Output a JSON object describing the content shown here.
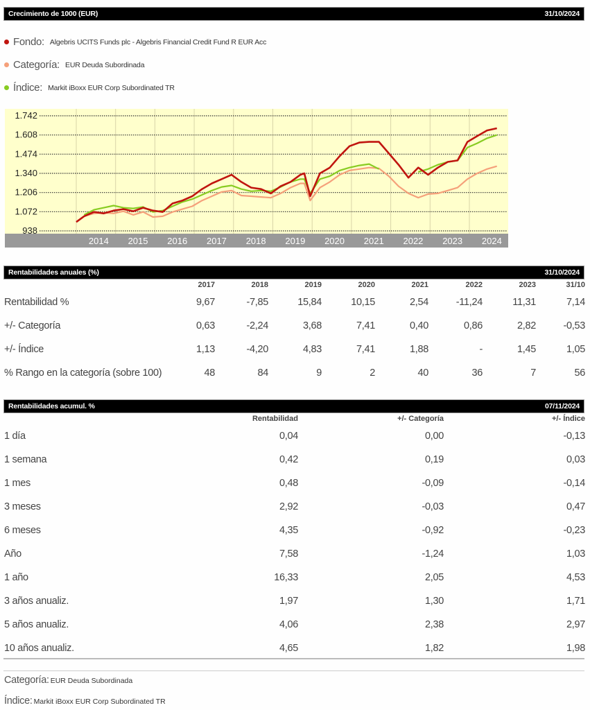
{
  "growth_section": {
    "title": "Crecimiento de 1000 (EUR)",
    "date": "31/10/2024",
    "legend": [
      {
        "label": "Fondo:",
        "value": "Algebris UCITS Funds plc - Algebris Financial Credit Fund R EUR Acc",
        "color": "#c0150f"
      },
      {
        "label": "Categoría:",
        "value": "EUR Deuda Subordinada",
        "color": "#f5a07a"
      },
      {
        "label": "Índice:",
        "value": "Markit iBoxx EUR Corp Subordinated TR",
        "color": "#88cc22"
      }
    ]
  },
  "chart_data": {
    "type": "line",
    "title": "Crecimiento de 1000 (EUR)",
    "xlabel": "",
    "ylabel": "",
    "y_ticks": [
      "1.742",
      "1.608",
      "1.474",
      "1.340",
      "1.206",
      "1.072",
      "938"
    ],
    "y_tick_values": [
      1742,
      1608,
      1474,
      1340,
      1206,
      1072,
      938
    ],
    "x_ticks": [
      "2014",
      "2015",
      "2016",
      "2017",
      "2018",
      "2019",
      "2020",
      "2021",
      "2022",
      "2023",
      "2024"
    ],
    "ylim": [
      930,
      1760
    ],
    "grid": true,
    "background": "#ffffcc",
    "x": [
      2013.8,
      2014.0,
      2014.25,
      2014.5,
      2014.75,
      2015.0,
      2015.25,
      2015.5,
      2015.75,
      2016.0,
      2016.25,
      2016.5,
      2016.75,
      2017.0,
      2017.25,
      2017.5,
      2017.75,
      2018.0,
      2018.25,
      2018.5,
      2018.75,
      2019.0,
      2019.25,
      2019.5,
      2019.6,
      2019.75,
      2020.0,
      2020.25,
      2020.5,
      2020.75,
      2021.0,
      2021.25,
      2021.5,
      2021.75,
      2022.0,
      2022.25,
      2022.5,
      2022.75,
      2023.0,
      2023.25,
      2023.5,
      2023.75,
      2024.0,
      2024.25,
      2024.5
    ],
    "series": [
      {
        "name": "Fondo",
        "color": "#c0150f",
        "values": [
          1000,
          1040,
          1070,
          1060,
          1080,
          1090,
          1075,
          1100,
          1080,
          1070,
          1130,
          1150,
          1180,
          1230,
          1270,
          1300,
          1330,
          1280,
          1240,
          1230,
          1200,
          1250,
          1280,
          1330,
          1340,
          1180,
          1340,
          1380,
          1460,
          1530,
          1555,
          1560,
          1560,
          1480,
          1400,
          1310,
          1380,
          1330,
          1380,
          1420,
          1430,
          1560,
          1600,
          1640,
          1655
        ]
      },
      {
        "name": "Categoría",
        "color": "#f5a07a",
        "values": [
          1000,
          1040,
          1060,
          1065,
          1060,
          1075,
          1050,
          1070,
          1035,
          1040,
          1070,
          1090,
          1110,
          1150,
          1180,
          1210,
          1220,
          1185,
          1180,
          1175,
          1170,
          1200,
          1240,
          1270,
          1270,
          1150,
          1240,
          1280,
          1330,
          1360,
          1370,
          1380,
          1375,
          1320,
          1250,
          1200,
          1170,
          1195,
          1200,
          1220,
          1240,
          1300,
          1340,
          1370,
          1390
        ]
      },
      {
        "name": "Índice",
        "color": "#88cc22",
        "values": [
          null,
          1050,
          1085,
          1100,
          1115,
          1100,
          1095,
          1105,
          1070,
          1080,
          1110,
          1140,
          1160,
          1190,
          1220,
          1245,
          1255,
          1230,
          1215,
          1220,
          1215,
          1245,
          1280,
          1300,
          1300,
          1200,
          1300,
          1320,
          1360,
          1380,
          1395,
          1405,
          1370,
          null,
          null,
          null,
          1350,
          1370,
          1400,
          1420,
          1430,
          1520,
          1550,
          1585,
          1608
        ]
      }
    ]
  },
  "annual_section": {
    "title": "Rentabilidades anuales (%)",
    "date": "31/10/2024",
    "columns": [
      "2017",
      "2018",
      "2019",
      "2020",
      "2021",
      "2022",
      "2023",
      "31/10"
    ],
    "rows": [
      {
        "label": "Rentabilidad %",
        "values": [
          "9,67",
          "-7,85",
          "15,84",
          "10,15",
          "2,54",
          "-11,24",
          "11,31",
          "7,14"
        ]
      },
      {
        "label": "+/- Categoría",
        "values": [
          "0,63",
          "-2,24",
          "3,68",
          "7,41",
          "0,40",
          "0,86",
          "2,82",
          "-0,53"
        ]
      },
      {
        "label": "+/- Índice",
        "values": [
          "1,13",
          "-4,20",
          "4,83",
          "7,41",
          "1,88",
          "-",
          "1,45",
          "1,05"
        ]
      },
      {
        "label": "% Rango en la categoría (sobre 100)",
        "values": [
          "48",
          "84",
          "9",
          "2",
          "40",
          "36",
          "7",
          "56"
        ]
      }
    ]
  },
  "cumulative_section": {
    "title": "Rentabilidades acumul. %",
    "date": "07/11/2024",
    "columns": [
      "Rentabilidad",
      "+/- Categoría",
      "+/- Índice"
    ],
    "rows": [
      {
        "label": "1 día",
        "values": [
          "0,04",
          "0,00",
          "-0,13"
        ]
      },
      {
        "label": "1 semana",
        "values": [
          "0,42",
          "0,19",
          "0,03"
        ]
      },
      {
        "label": "1 mes",
        "values": [
          "0,48",
          "-0,09",
          "-0,14"
        ]
      },
      {
        "label": "3 meses",
        "values": [
          "2,92",
          "-0,03",
          "0,47"
        ]
      },
      {
        "label": "6 meses",
        "values": [
          "4,35",
          "-0,92",
          "-0,23"
        ]
      },
      {
        "label": "Año",
        "values": [
          "7,58",
          "-1,24",
          "1,03"
        ]
      },
      {
        "label": "1 año",
        "values": [
          "16,33",
          "2,05",
          "4,53"
        ]
      },
      {
        "label": "3 años anualiz.",
        "values": [
          "1,97",
          "1,30",
          "1,71"
        ]
      },
      {
        "label": "5 años anualiz.",
        "values": [
          "4,06",
          "2,38",
          "2,97"
        ]
      },
      {
        "label": "10 años anualiz.",
        "values": [
          "4,65",
          "1,82",
          "1,98"
        ]
      }
    ]
  },
  "footer": {
    "category_label": "Categoría:",
    "category_value": "EUR Deuda Subordinada",
    "index_label": "Índice:",
    "index_value": "Markit iBoxx EUR Corp Subordinated TR"
  }
}
